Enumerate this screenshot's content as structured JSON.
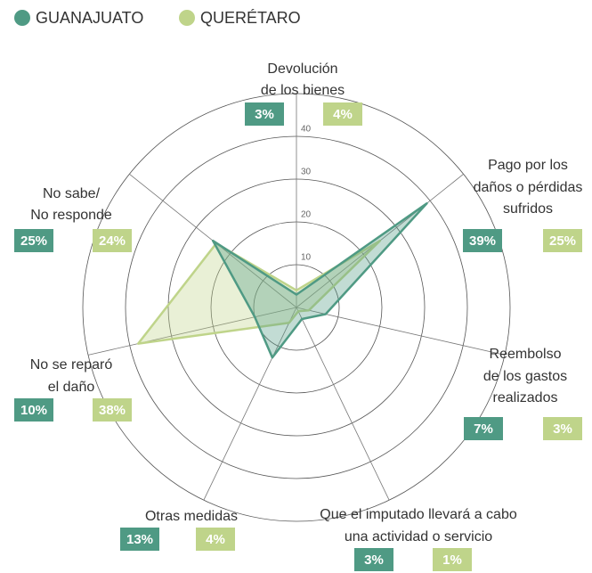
{
  "chart_data": {
    "type": "radar",
    "categories": [
      [
        "Devolución",
        "de los bienes"
      ],
      [
        "Pago por los",
        "daños o pérdidas",
        "sufridos"
      ],
      [
        "Reembolso",
        "de los gastos",
        "realizados"
      ],
      [
        "Que el imputado llevará a cabo",
        "una actividad o servicio"
      ],
      [
        "Otras medidas"
      ],
      [
        "No se reparó",
        "el daño"
      ],
      [
        "No sabe/",
        "No responde"
      ]
    ],
    "series": [
      {
        "name": "GUANAJUATO",
        "color": "#4f9a84",
        "values": [
          3,
          39,
          7,
          3,
          13,
          10,
          25
        ],
        "value_labels": [
          "3%",
          "39%",
          "7%",
          "3%",
          "13%",
          "10%",
          "25%"
        ]
      },
      {
        "name": "QUERÉTARO",
        "color": "#bfd48a",
        "values": [
          4,
          25,
          3,
          1,
          4,
          38,
          24
        ],
        "value_labels": [
          "4%",
          "25%",
          "3%",
          "1%",
          "4%",
          "38%",
          "24%"
        ]
      }
    ],
    "rlim": [
      0,
      50
    ],
    "rticks": [
      10,
      20,
      30,
      40
    ],
    "grid": true
  }
}
